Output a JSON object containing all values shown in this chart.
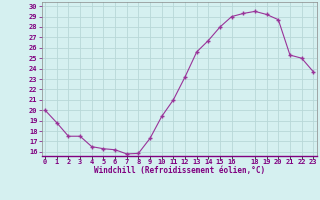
{
  "x_vals": [
    0,
    1,
    2,
    3,
    4,
    5,
    6,
    7,
    8,
    9,
    10,
    11,
    12,
    13,
    14,
    15,
    16,
    17,
    18,
    19,
    20,
    21,
    22,
    23
  ],
  "y_vals": [
    20.0,
    18.8,
    17.5,
    17.5,
    16.5,
    16.3,
    16.2,
    15.8,
    15.85,
    17.3,
    19.4,
    21.0,
    23.2,
    25.6,
    26.7,
    28.0,
    29.0,
    29.3,
    29.5,
    29.2,
    28.7,
    25.3,
    25.0,
    23.7
  ],
  "xlabel": "Windchill (Refroidissement éolien,°C)",
  "line_color": "#993399",
  "marker_color": "#993399",
  "bg_color": "#d5f0f0",
  "grid_color": "#b8d8d8",
  "ylim_min": 16,
  "ylim_max": 30,
  "xlim_min": 0,
  "xlim_max": 23,
  "yticks": [
    16,
    17,
    18,
    19,
    20,
    21,
    22,
    23,
    24,
    25,
    26,
    27,
    28,
    29,
    30
  ],
  "xtick_positions": [
    0,
    1,
    2,
    3,
    4,
    5,
    6,
    7,
    8,
    9,
    10,
    11,
    12,
    13,
    14,
    15,
    16,
    18,
    19,
    20,
    21,
    22,
    23
  ],
  "xtick_labels": [
    "0",
    "1",
    "2",
    "3",
    "4",
    "5",
    "6",
    "7",
    "8",
    "9",
    "10",
    "11",
    "12",
    "13",
    "14",
    "15",
    "16",
    "18",
    "19",
    "20",
    "21",
    "22",
    "23"
  ],
  "font_color": "#800080",
  "tick_fontsize": 5,
  "xlabel_fontsize": 5.5
}
